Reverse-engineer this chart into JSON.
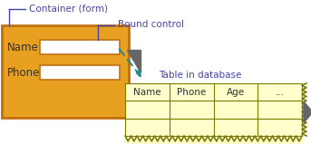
{
  "bg_color": "#ffffff",
  "container_color": "#e8a020",
  "container_border": "#c07010",
  "form_field_color": "#ffffff",
  "form_field_border": "#c07010",
  "table_fill": "#ffffcc",
  "table_border": "#7a7a00",
  "arrow_color": "#2a8888",
  "label_color": "#4444aa",
  "text_color": "#333333",
  "shadow_color": "#666666",
  "container_label": "Container (form)",
  "bound_label": "Bound control",
  "table_label": "Table in database",
  "table_columns": [
    "Name",
    "Phone",
    "Age",
    "..."
  ],
  "form_labels": [
    "Name",
    "Phone"
  ]
}
